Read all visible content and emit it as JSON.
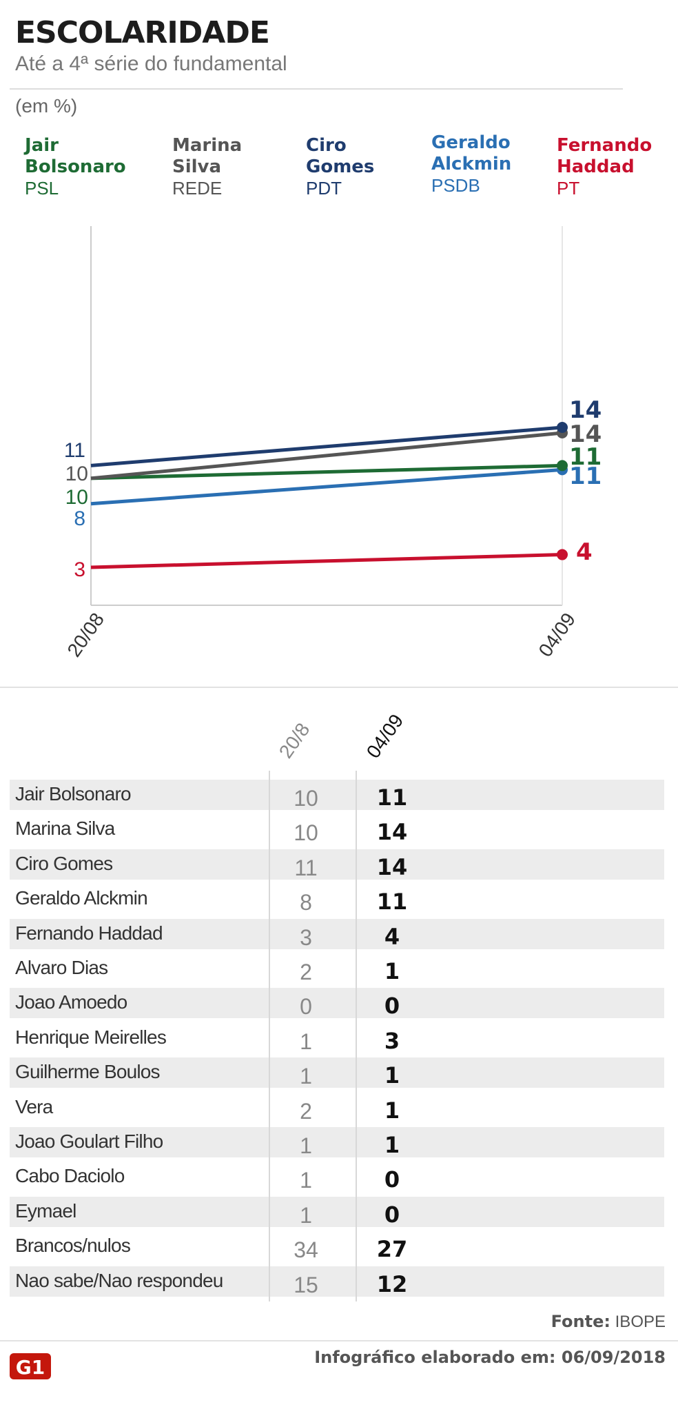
{
  "header": {
    "title": "ESCOLARIDADE",
    "subtitle": "Até a 4ª série do fundamental",
    "unit": "(em %)"
  },
  "legend": [
    {
      "name": "Jair\nBolsonaro",
      "party": "PSL",
      "color": "#1e6b34"
    },
    {
      "name": "Marina\nSilva",
      "party": "REDE",
      "color": "#555555"
    },
    {
      "name": "Ciro\nGomes",
      "party": "PDT",
      "color": "#1f3c6e"
    },
    {
      "name": "Geraldo\nAlckmin",
      "party": "PSDB",
      "color": "#2a6fb3"
    },
    {
      "name": "Fernando\nHaddad",
      "party": "PT",
      "color": "#c8102e"
    }
  ],
  "chart_data": {
    "type": "line",
    "title": "ESCOLARIDADE",
    "subtitle": "Até a 4ª série do fundamental",
    "ylabel": "(em %)",
    "x": [
      "20/08",
      "04/09"
    ],
    "series": [
      {
        "name": "Jair Bolsonaro",
        "values": [
          10,
          11
        ],
        "color": "#1e6b34"
      },
      {
        "name": "Marina Silva",
        "values": [
          10,
          14
        ],
        "color": "#555555"
      },
      {
        "name": "Ciro Gomes",
        "values": [
          11,
          14
        ],
        "color": "#1f3c6e"
      },
      {
        "name": "Geraldo Alckmin",
        "values": [
          8,
          11
        ],
        "color": "#2a6fb3"
      },
      {
        "name": "Fernando Haddad",
        "values": [
          3,
          4
        ],
        "color": "#c8102e"
      }
    ],
    "start_labels": [
      "11",
      "10",
      "10",
      "8",
      "3"
    ],
    "end_labels": [
      "14",
      "14",
      "11",
      "11",
      "4"
    ]
  },
  "table": {
    "col1": "20/8",
    "col2": "04/09",
    "rows": [
      {
        "name": "Jair Bolsonaro",
        "v1": "10",
        "v2": "11"
      },
      {
        "name": "Marina Silva",
        "v1": "10",
        "v2": "14"
      },
      {
        "name": "Ciro Gomes",
        "v1": "11",
        "v2": "14"
      },
      {
        "name": "Geraldo Alckmin",
        "v1": "8",
        "v2": "11"
      },
      {
        "name": "Fernando Haddad",
        "v1": "3",
        "v2": "4"
      },
      {
        "name": "Alvaro Dias",
        "v1": "2",
        "v2": "1"
      },
      {
        "name": "Joao Amoedo",
        "v1": "0",
        "v2": "0"
      },
      {
        "name": "Henrique Meirelles",
        "v1": "1",
        "v2": "3"
      },
      {
        "name": "Guilherme Boulos",
        "v1": "1",
        "v2": "1"
      },
      {
        "name": "Vera",
        "v1": "2",
        "v2": "1"
      },
      {
        "name": "Joao Goulart Filho",
        "v1": "1",
        "v2": "1"
      },
      {
        "name": "Cabo Daciolo",
        "v1": "1",
        "v2": "0"
      },
      {
        "name": "Eymael",
        "v1": "1",
        "v2": "0"
      },
      {
        "name": "Brancos/nulos",
        "v1": "34",
        "v2": "27"
      },
      {
        "name": "Nao sabe/Nao respondeu",
        "v1": "15",
        "v2": "12"
      }
    ]
  },
  "footer": {
    "source_label": "Fonte:",
    "source": "IBOPE",
    "credit": "Infográfico elaborado em: 06/09/2018",
    "logo_text": "G1",
    "logo_color": "#c4170c"
  }
}
